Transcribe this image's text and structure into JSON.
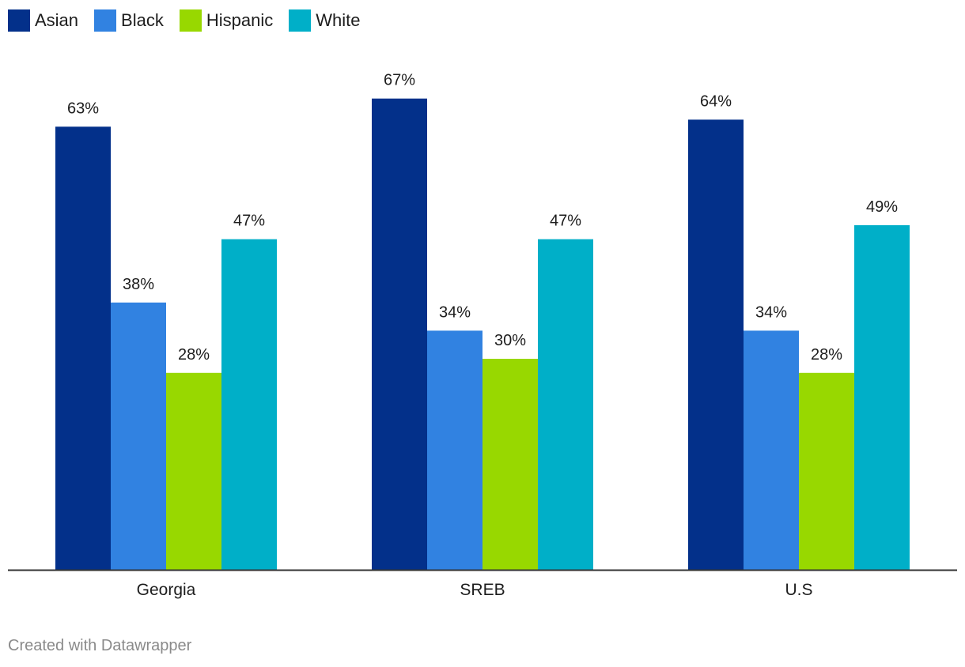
{
  "chart_data": {
    "type": "bar",
    "categories": [
      "Georgia",
      "SREB",
      "U.S"
    ],
    "series": [
      {
        "name": "Asian",
        "color": "#03308a",
        "values": [
          63,
          67,
          64
        ],
        "labels": [
          "63%",
          "67%",
          "64%"
        ]
      },
      {
        "name": "Black",
        "color": "#3182e1",
        "values": [
          38,
          34,
          34
        ],
        "labels": [
          "38%",
          "34%",
          "34%"
        ]
      },
      {
        "name": "Hispanic",
        "color": "#98d800",
        "values": [
          28,
          30,
          28
        ],
        "labels": [
          "28%",
          "30%",
          "28%"
        ]
      },
      {
        "name": "White",
        "color": "#00afc8",
        "values": [
          47,
          47,
          49
        ],
        "labels": [
          "47%",
          "47%",
          "49%"
        ]
      }
    ],
    "ylim": [
      0,
      70
    ],
    "grid": false,
    "legend_position": "top-left"
  },
  "footer": {
    "credit": "Created with Datawrapper"
  }
}
